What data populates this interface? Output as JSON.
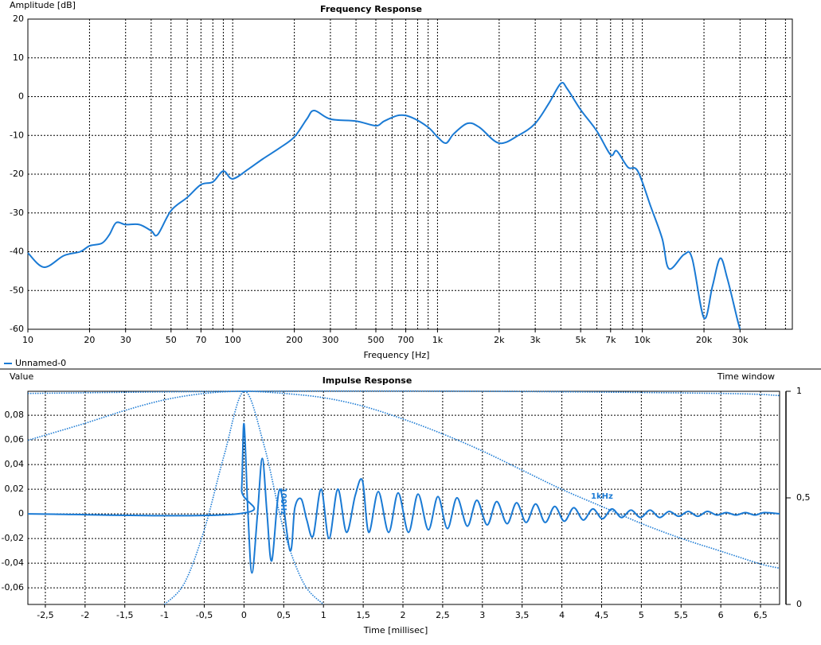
{
  "chart_data": [
    {
      "type": "line",
      "title": "Frequency Response",
      "xlabel": "Frequency [Hz]",
      "ylabel": "Amplitude [dB]",
      "xscale": "log",
      "xlim": [
        10,
        54000
      ],
      "ylim": [
        -60,
        20
      ],
      "xticks": [
        10,
        20,
        30,
        50,
        70,
        100,
        200,
        300,
        500,
        700,
        {
          "value": 1000,
          "label": "1k"
        },
        {
          "value": 2000,
          "label": "2k"
        },
        {
          "value": 3000,
          "label": "3k"
        },
        {
          "value": 5000,
          "label": "5k"
        },
        {
          "value": 7000,
          "label": "7k"
        },
        {
          "value": 10000,
          "label": "10k"
        },
        {
          "value": 20000,
          "label": "20k"
        },
        {
          "value": 30000,
          "label": "30k"
        }
      ],
      "xgrid_minor": [
        40,
        60,
        80,
        90,
        400,
        600,
        800,
        900,
        4000,
        6000,
        8000,
        9000,
        40000,
        50000
      ],
      "yticks": [
        -60,
        -50,
        -40,
        -30,
        -20,
        -10,
        0,
        10,
        20
      ],
      "grid": true,
      "legend": "bottom-left",
      "series": [
        {
          "name": "Unnamed-0",
          "color": "#1a7ad4",
          "style": "solid",
          "x": [
            10,
            12,
            15,
            18,
            20,
            23,
            25,
            27,
            30,
            35,
            40,
            43,
            50,
            60,
            70,
            80,
            90,
            100,
            120,
            140,
            170,
            200,
            230,
            250,
            300,
            400,
            500,
            550,
            650,
            750,
            900,
            1000,
            1100,
            1200,
            1400,
            1600,
            2000,
            2500,
            3000,
            3500,
            4000,
            4300,
            5000,
            6000,
            7000,
            7500,
            8500,
            9500,
            11000,
            12500,
            13500,
            16000,
            17500,
            20000,
            22000,
            24000,
            26000,
            29000,
            30000
          ],
          "values": [
            -40.3,
            -44,
            -41,
            -40,
            -38.5,
            -37.8,
            -35.6,
            -32.5,
            -33,
            -33,
            -34.6,
            -35.6,
            -29.4,
            -26,
            -22.7,
            -22,
            -19.2,
            -21.2,
            -18.6,
            -16.1,
            -13.2,
            -10.4,
            -5.8,
            -3.6,
            -5.8,
            -6.3,
            -7.5,
            -6.3,
            -4.8,
            -5.4,
            -7.9,
            -10.4,
            -12,
            -9.6,
            -6.9,
            -7.9,
            -12,
            -9.9,
            -6.9,
            -1.7,
            3.4,
            2,
            -3.4,
            -8.9,
            -15,
            -14,
            -18.2,
            -19.2,
            -28.4,
            -36.6,
            -44.4,
            -40.7,
            -41.7,
            -57.1,
            -48.9,
            -41.7,
            -46.9,
            -57.1,
            -60
          ]
        }
      ]
    },
    {
      "type": "line",
      "title": "Impulse Response",
      "xlabel": "Time [millisec]",
      "ylabel": "Value",
      "y2label": "Time window",
      "xlim": [
        -2.72,
        6.74
      ],
      "ylim": [
        -0.0735,
        0.0994
      ],
      "y2lim": [
        0,
        1
      ],
      "xticks": [
        {
          "value": -2.5,
          "label": "-2,5"
        },
        -2,
        {
          "value": -1.5,
          "label": "-1,5"
        },
        -1,
        {
          "value": -0.5,
          "label": "-0,5"
        },
        0,
        {
          "value": 0.5,
          "label": "0,5"
        },
        1,
        {
          "value": 1.5,
          "label": "1,5"
        },
        2,
        {
          "value": 2.5,
          "label": "2,5"
        },
        3,
        {
          "value": 3.5,
          "label": "3,5"
        },
        4,
        {
          "value": 4.5,
          "label": "4,5"
        },
        5,
        {
          "value": 5.5,
          "label": "5,5"
        },
        6,
        {
          "value": 6.5,
          "label": "6,5"
        }
      ],
      "yticks": [
        {
          "value": -0.06,
          "label": "-0,06"
        },
        {
          "value": -0.04,
          "label": "-0,04"
        },
        {
          "value": -0.02,
          "label": "-0,02"
        },
        0,
        {
          "value": 0.02,
          "label": "0,02"
        },
        {
          "value": 0.04,
          "label": "0,04"
        },
        {
          "value": 0.06,
          "label": "0,06"
        },
        {
          "value": 0.08,
          "label": "0,08"
        }
      ],
      "y2ticks": [
        0,
        {
          "value": 0.5,
          "label": "0,5"
        },
        1
      ],
      "grid": true,
      "series": [
        {
          "color": "#1a7ad4",
          "style": "solid",
          "x": [
            -2.72,
            -0.08,
            -0.03,
            0.0,
            0.05,
            0.1,
            0.17,
            0.23,
            0.29,
            0.35,
            0.45,
            0.58,
            0.64,
            0.72,
            0.79,
            0.87,
            0.97,
            1.07,
            1.18,
            1.29,
            1.4,
            1.49,
            1.57,
            1.69,
            1.82,
            1.94,
            2.07,
            2.19,
            2.32,
            2.44,
            2.56,
            2.68,
            2.81,
            2.93,
            3.06,
            3.18,
            3.31,
            3.43,
            3.55,
            3.67,
            3.79,
            3.91,
            4.03,
            4.15,
            4.27,
            4.39,
            4.51,
            4.63,
            4.75,
            4.87,
            4.99,
            5.11,
            5.23,
            5.35,
            5.47,
            5.59,
            5.71,
            5.83,
            5.95,
            6.07,
            6.19,
            6.31,
            6.43,
            6.55,
            6.74
          ],
          "values": [
            0,
            0,
            0.02,
            0.073,
            0.0,
            -0.048,
            0.0,
            0.045,
            0.0,
            -0.038,
            0.02,
            -0.03,
            0.005,
            0.012,
            -0.005,
            -0.018,
            0.02,
            -0.02,
            0.02,
            -0.015,
            0.015,
            0.027,
            -0.015,
            0.018,
            -0.015,
            0.017,
            -0.015,
            0.016,
            -0.013,
            0.014,
            -0.012,
            0.013,
            -0.01,
            0.011,
            -0.009,
            0.01,
            -0.008,
            0.009,
            -0.007,
            0.008,
            -0.007,
            0.006,
            -0.006,
            0.005,
            -0.005,
            0.004,
            -0.004,
            0.004,
            -0.003,
            0.003,
            -0.003,
            0.003,
            -0.003,
            0.002,
            -0.002,
            0.002,
            -0.002,
            0.002,
            -0.001,
            0.001,
            -0.001,
            0.001,
            -0.001,
            0.001,
            0
          ]
        },
        {
          "name": "1kHz",
          "color": "#1a7ad4",
          "style": "dotted",
          "axis": "y2",
          "x": [
            -2.72,
            -2,
            -1.5,
            -1,
            -0.5,
            0,
            0.5,
            1,
            1.5,
            2,
            2.5,
            3,
            3.5,
            4,
            4.5,
            5,
            5.5,
            6,
            6.5,
            6.74
          ],
          "values": [
            0.77,
            0.85,
            0.91,
            0.96,
            0.99,
            1,
            0.99,
            0.97,
            0.93,
            0.87,
            0.8,
            0.72,
            0.63,
            0.54,
            0.46,
            0.38,
            0.31,
            0.25,
            0.19,
            0.17
          ]
        },
        {
          "name": "100Hz",
          "color": "#1a7ad4",
          "style": "dotted",
          "axis": "y2",
          "x": [
            -1,
            -0.75,
            -0.5,
            -0.25,
            0,
            0.25,
            0.5,
            0.75,
            1
          ],
          "values": [
            0,
            0.1,
            0.35,
            0.7,
            1,
            0.75,
            0.35,
            0.1,
            0
          ]
        },
        {
          "color": "#1a7ad4",
          "style": "dotted",
          "axis": "y2",
          "x": [
            -2.72,
            0,
            3,
            6,
            6.74
          ],
          "values": [
            0.99,
            1,
            1,
            0.99,
            0.98
          ]
        }
      ]
    }
  ]
}
